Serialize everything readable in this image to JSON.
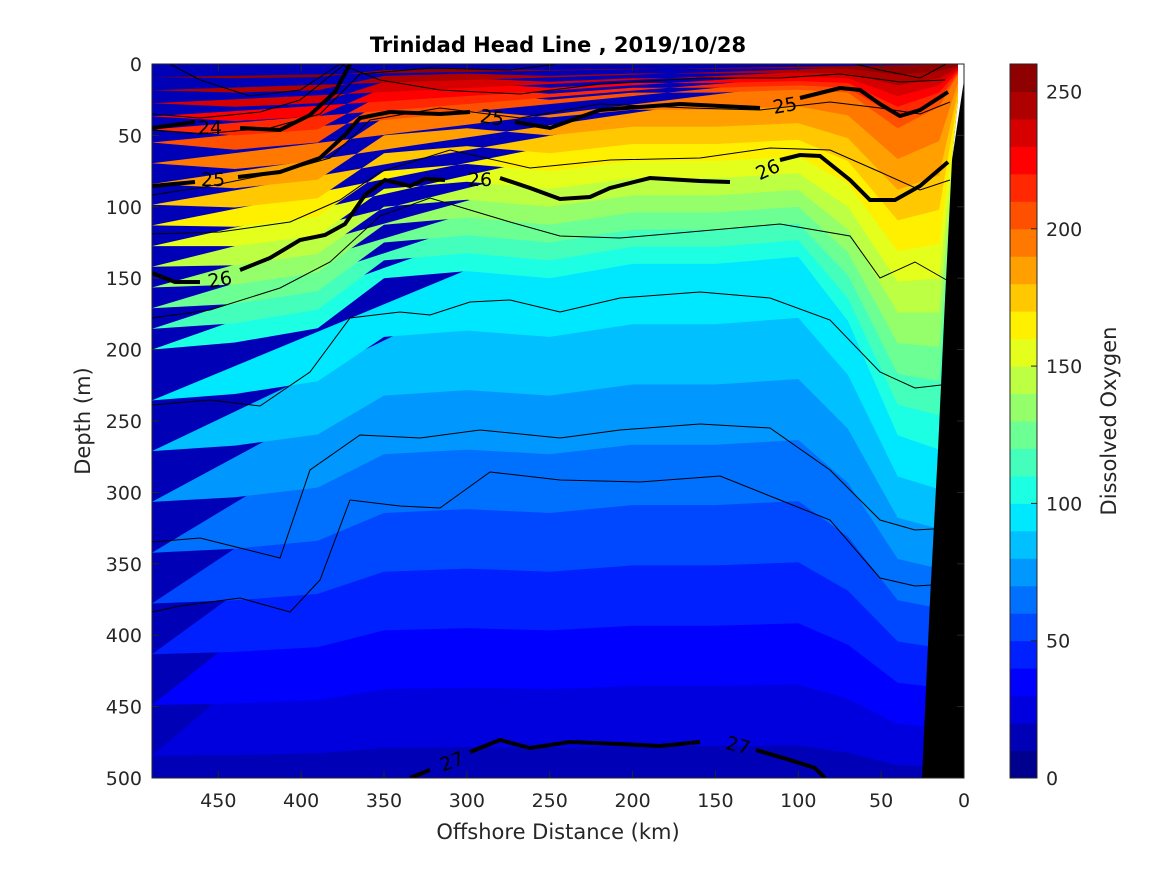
{
  "chart_data": {
    "type": "contour",
    "title": "Trinidad Head Line , 2019/10/28",
    "xlabel": "Offshore Distance (km)",
    "ylabel": "Depth (m)",
    "colorbar_label": "Dissolved Oxygen",
    "xlim": [
      490,
      0
    ],
    "ylim": [
      0,
      500
    ],
    "x_ticks": [
      "450",
      "400",
      "350",
      "300",
      "250",
      "200",
      "150",
      "100",
      "50",
      "0"
    ],
    "y_ticks": [
      "0",
      "50",
      "100",
      "150",
      "200",
      "250",
      "300",
      "350",
      "400",
      "450",
      "500"
    ],
    "colorbar_range": [
      0,
      260
    ],
    "colorbar_ticks": [
      "250",
      "200",
      "150",
      "100",
      "50",
      "0"
    ],
    "colormap": [
      "#00008f",
      "#0000b7",
      "#0000df",
      "#0000ff",
      "#0020ff",
      "#0048ff",
      "#0070ff",
      "#0098ff",
      "#00c0ff",
      "#00e8ff",
      "#1cffe3",
      "#44ffbb",
      "#6cff93",
      "#94ff6b",
      "#bcff43",
      "#e4ff1b",
      "#fff000",
      "#ffc800",
      "#ffa000",
      "#ff7800",
      "#ff5000",
      "#ff2800",
      "#ff0000",
      "#d70000",
      "#af0000",
      "#8f0000"
    ],
    "isopycnal_labels": [
      "24",
      "25",
      "25",
      "25",
      "26",
      "26",
      "26",
      "27",
      "27"
    ],
    "oxygen_profile": {
      "x": [
        490,
        440,
        390,
        350,
        300,
        250,
        200,
        150,
        100,
        70,
        40,
        15
      ],
      "depth_of_200_contour": [
        55,
        60,
        55,
        25,
        20,
        25,
        20,
        20,
        18,
        20,
        45,
        30
      ],
      "depth_of_100_contour": [
        200,
        195,
        185,
        150,
        145,
        150,
        140,
        140,
        135,
        180,
        260,
        270
      ]
    }
  }
}
